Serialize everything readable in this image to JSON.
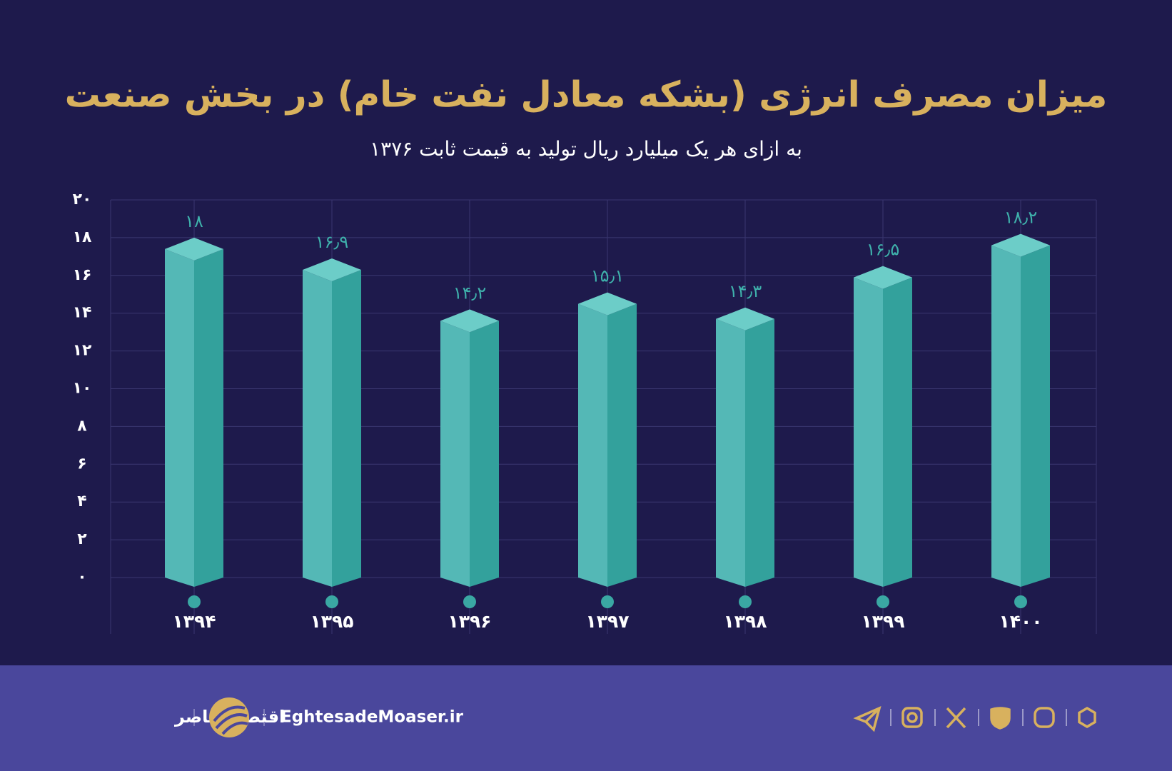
{
  "chart_data": {
    "type": "bar",
    "title": "میزان مصرف انرژی (بشکه معادل نفت خام) در بخش صنعت",
    "subtitle": "به ازای هر یک میلیارد ریال تولید به قیمت ثابت ۱۳۷۶",
    "categories": [
      "۱۳۹۴",
      "۱۳۹۵",
      "۱۳۹۶",
      "۱۳۹۷",
      "۱۳۹۸",
      "۱۳۹۹",
      "۱۴۰۰"
    ],
    "values": [
      18,
      16.9,
      14.2,
      15.1,
      14.3,
      16.5,
      18.2
    ],
    "value_labels": [
      "۱۸",
      "۱۶٫۹",
      "۱۴٫۲",
      "۱۵٫۱",
      "۱۴٫۳",
      "۱۶٫۵",
      "۱۸٫۲"
    ],
    "color": "#33a19c",
    "ylim": [
      0,
      20
    ],
    "yticks": [
      {
        "value": 0,
        "label": "۰"
      },
      {
        "value": 2,
        "label": "۲"
      },
      {
        "value": 4,
        "label": "۴"
      },
      {
        "value": 6,
        "label": "۶"
      },
      {
        "value": 8,
        "label": "۸"
      },
      {
        "value": 10,
        "label": "۱۰"
      },
      {
        "value": 12,
        "label": "۱۲"
      },
      {
        "value": 14,
        "label": "۱۴"
      },
      {
        "value": 16,
        "label": "۱۶"
      },
      {
        "value": 18,
        "label": "۱۸"
      },
      {
        "value": 20,
        "label": "۲۰"
      }
    ],
    "grid": true
  },
  "footer": {
    "brand": "اقتصادمعاصر",
    "website": "EghtesadeMoaser.ir"
  }
}
